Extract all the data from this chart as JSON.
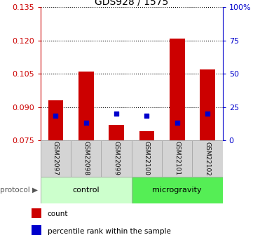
{
  "title": "GDS928 / 1575",
  "samples": [
    "GSM22097",
    "GSM22098",
    "GSM22099",
    "GSM22100",
    "GSM22101",
    "GSM22102"
  ],
  "groups": [
    "control",
    "control",
    "control",
    "microgravity",
    "microgravity",
    "microgravity"
  ],
  "count_values": [
    0.093,
    0.106,
    0.082,
    0.079,
    0.121,
    0.107
  ],
  "percentile_values": [
    0.086,
    0.083,
    0.087,
    0.086,
    0.083,
    0.087
  ],
  "ylim_left": [
    0.075,
    0.135
  ],
  "ylim_right": [
    0,
    100
  ],
  "yticks_left": [
    0.075,
    0.09,
    0.105,
    0.12,
    0.135
  ],
  "yticks_right": [
    0,
    25,
    50,
    75,
    100
  ],
  "bar_color": "#cc0000",
  "dot_color": "#0000cc",
  "control_color": "#ccffcc",
  "microgravity_color": "#55ee55",
  "left_tick_color": "#cc0000",
  "right_tick_color": "#0000cc",
  "bar_width": 0.5,
  "base_value": 0.075,
  "protocol_label": "protocol",
  "legend_count": "count",
  "legend_percentile": "percentile rank within the sample"
}
